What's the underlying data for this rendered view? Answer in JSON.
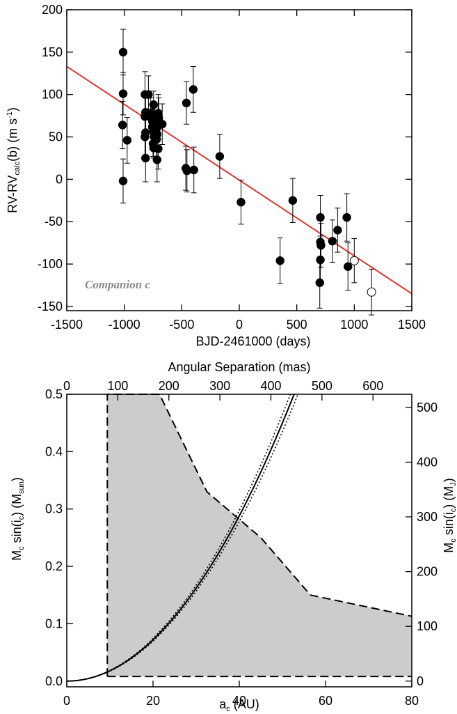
{
  "chart_data": [
    {
      "type": "scatter",
      "xlabel": "BJD-2461000 (days)",
      "ylabel": {
        "main": "RV-RV",
        "sub": "calc",
        "tail": "(b) (m s",
        "sup": "-1",
        "close": ")"
      },
      "xlim": [
        -1500,
        1500
      ],
      "ylim": [
        -155,
        200
      ],
      "xticks": [
        -1500,
        -1000,
        -500,
        0,
        500,
        1000,
        1500
      ],
      "yticks": [
        -150,
        -100,
        -50,
        0,
        50,
        100,
        150,
        200
      ],
      "annotation": "Companion c",
      "grid": false,
      "fit_line": {
        "color": "#e8201c",
        "x": [
          -1500,
          1500
        ],
        "y": [
          133,
          -135
        ]
      },
      "series": [
        {
          "marker": "filled-circle",
          "points": [
            [
              -1010,
              150,
              27
            ],
            [
              -1010,
              101,
              25
            ],
            [
              -1015,
              64,
              28
            ],
            [
              -1010,
              -2,
              26
            ],
            [
              -975,
              46,
              27
            ],
            [
              -820,
              100,
              27
            ],
            [
              -815,
              79,
              22
            ],
            [
              -820,
              74,
              22
            ],
            [
              -815,
              55,
              28
            ],
            [
              -820,
              50,
              26
            ],
            [
              -815,
              25,
              28
            ],
            [
              -790,
              100,
              22
            ],
            [
              -770,
              78,
              18
            ],
            [
              -760,
              73,
              15
            ],
            [
              -755,
              68,
              15
            ],
            [
              -745,
              88,
              16
            ],
            [
              -755,
              62,
              18
            ],
            [
              -745,
              57,
              14
            ],
            [
              -740,
              50,
              13
            ],
            [
              -750,
              42,
              15
            ],
            [
              -745,
              37,
              12
            ],
            [
              -735,
              70,
              15
            ],
            [
              -725,
              66,
              14
            ],
            [
              -720,
              60,
              15
            ],
            [
              -715,
              53,
              16
            ],
            [
              -720,
              47,
              20
            ],
            [
              -705,
              78,
              22
            ],
            [
              -700,
              72,
              24
            ],
            [
              -705,
              36,
              24
            ],
            [
              -715,
              23,
              26
            ],
            [
              -670,
              65,
              24
            ],
            [
              -460,
              90,
              25
            ],
            [
              -465,
              13,
              26
            ],
            [
              -455,
              10,
              25
            ],
            [
              -400,
              106,
              27
            ],
            [
              -395,
              11,
              27
            ],
            [
              -170,
              27,
              26
            ],
            [
              15,
              -27,
              26
            ],
            [
              355,
              -96,
              27
            ],
            [
              465,
              -25,
              26
            ],
            [
              705,
              -45,
              26
            ],
            [
              705,
              -74,
              25
            ],
            [
              710,
              -78,
              26
            ],
            [
              705,
              -95,
              28
            ],
            [
              700,
              -122,
              30
            ],
            [
              810,
              -73,
              25
            ],
            [
              855,
              -60,
              26
            ],
            [
              935,
              -45,
              28
            ],
            [
              945,
              -103,
              28
            ]
          ]
        },
        {
          "marker": "open-circle",
          "points": [
            [
              1000,
              -96,
              26
            ],
            [
              1150,
              -133,
              27
            ]
          ]
        }
      ]
    },
    {
      "type": "area",
      "xlabel": {
        "main": "a",
        "sub": "c",
        "tail": " (AU)"
      },
      "ylabel": {
        "main": "M",
        "sub": "c",
        "mid": " sin(i",
        "sub2": "c",
        "tail": ") (M",
        "sub3": "sun",
        "close": ")"
      },
      "xlabel_top": "Angular Separation (mas)",
      "ylabel_right": {
        "main": "M",
        "sub": "c",
        "mid": " sin(i",
        "sub2": "c",
        "tail": ") (M",
        "sub3": "J",
        "close": ")"
      },
      "xlim": [
        0,
        80
      ],
      "ylim": [
        -0.01,
        0.5
      ],
      "xticks": [
        0,
        20,
        40,
        60,
        80
      ],
      "yticks": [
        0.0,
        0.1,
        0.2,
        0.3,
        0.4,
        0.5
      ],
      "top_ticks": [
        0,
        100,
        200,
        300,
        400,
        500,
        600
      ],
      "top_max": 676,
      "right_ticks": [
        0,
        100,
        200,
        300,
        400,
        500
      ],
      "right_max": 524,
      "shade_color": "#cccccc",
      "excluded_boundary": [
        [
          9.4,
          0.5
        ],
        [
          21.5,
          0.5
        ],
        [
          32.5,
          0.33
        ],
        [
          45,
          0.25
        ],
        [
          56.5,
          0.15
        ],
        [
          80,
          0.113
        ]
      ],
      "inner_limit_x": 9.4,
      "floor_y": 0.008,
      "mass_curve": {
        "coef": 0.00018,
        "exp": 2
      },
      "mass_curve_bounds": {
        "upper_coef": 0.000186,
        "lower_coef": 0.000174
      }
    }
  ]
}
